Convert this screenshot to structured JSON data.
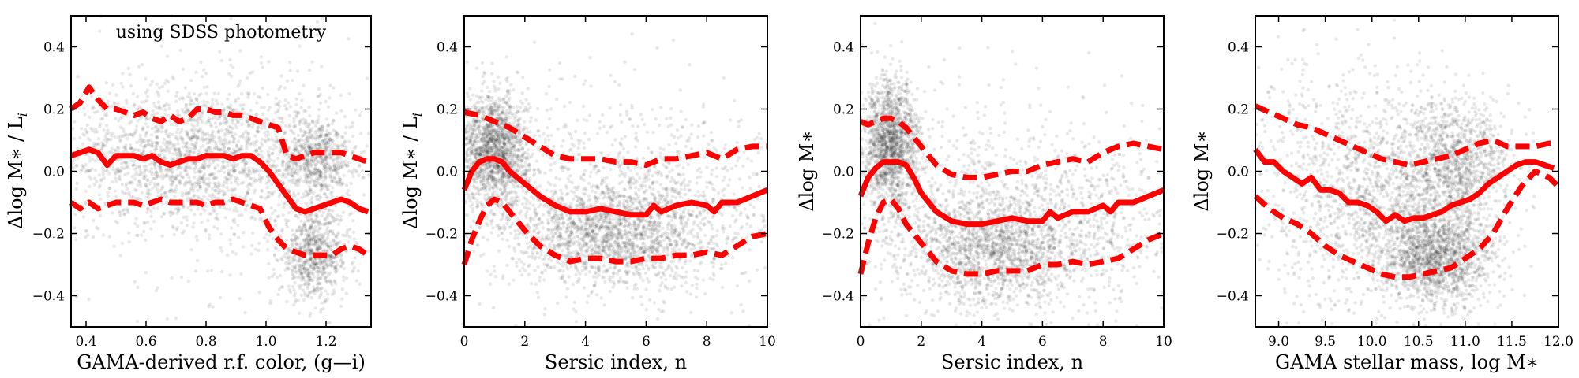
{
  "figure_colors": {
    "scatter": "#000000",
    "median_line": "#ff0000",
    "percentile_line": "#ff0000"
  },
  "chart_data": [
    {
      "type": "scatter",
      "xlabel": "GAMA-derived r.f. color, (g—i)",
      "ylabel": "Δlog M∗ / L",
      "ylabel_subscript": "i",
      "annotation": "using SDSS photometry",
      "xlim": [
        0.35,
        1.35
      ],
      "ylim": [
        -0.5,
        0.5
      ],
      "xticks": [
        0.4,
        0.6,
        0.8,
        1.0,
        1.2
      ],
      "xtick_labels": [
        "0.4",
        "0.6",
        "0.8",
        "1.0",
        "1.2"
      ],
      "yticks": [
        -0.4,
        -0.2,
        0.0,
        0.2,
        0.4
      ],
      "ytick_labels": [
        "−0.4",
        "−0.2",
        "0.0",
        "0.2",
        "0.4"
      ],
      "density_clusters": [
        {
          "x": 0.75,
          "y": 0.05,
          "sx": 0.22,
          "sy": 0.11,
          "n": 1700
        },
        {
          "x": 1.17,
          "y": 0.04,
          "sx": 0.06,
          "sy": 0.07,
          "n": 650
        },
        {
          "x": 1.16,
          "y": -0.27,
          "sx": 0.06,
          "sy": 0.07,
          "n": 750
        },
        {
          "x": 0.85,
          "y": 0.0,
          "sx": 0.3,
          "sy": 0.25,
          "n": 450
        }
      ],
      "series": [
        {
          "name": "median",
          "style": "solid",
          "x": [
            0.35,
            0.38,
            0.41,
            0.44,
            0.47,
            0.5,
            0.53,
            0.56,
            0.59,
            0.62,
            0.65,
            0.68,
            0.71,
            0.74,
            0.77,
            0.8,
            0.83,
            0.86,
            0.89,
            0.92,
            0.95,
            0.98,
            1.01,
            1.04,
            1.07,
            1.1,
            1.13,
            1.16,
            1.19,
            1.22,
            1.25,
            1.28,
            1.31,
            1.34
          ],
          "y": [
            0.05,
            0.06,
            0.07,
            0.06,
            0.02,
            0.05,
            0.05,
            0.05,
            0.04,
            0.05,
            0.03,
            0.02,
            0.03,
            0.04,
            0.04,
            0.05,
            0.05,
            0.05,
            0.04,
            0.05,
            0.05,
            0.03,
            0.0,
            -0.04,
            -0.08,
            -0.12,
            -0.13,
            -0.12,
            -0.11,
            -0.1,
            -0.09,
            -0.1,
            -0.12,
            -0.13
          ]
        },
        {
          "name": "upper percentile",
          "style": "dashed",
          "x": [
            0.35,
            0.38,
            0.41,
            0.44,
            0.47,
            0.5,
            0.53,
            0.56,
            0.59,
            0.62,
            0.65,
            0.68,
            0.71,
            0.74,
            0.77,
            0.8,
            0.83,
            0.86,
            0.89,
            0.92,
            0.95,
            0.98,
            1.01,
            1.04,
            1.07,
            1.1,
            1.13,
            1.16,
            1.19,
            1.22,
            1.25,
            1.28,
            1.31,
            1.34
          ],
          "y": [
            0.2,
            0.22,
            0.27,
            0.23,
            0.2,
            0.2,
            0.19,
            0.18,
            0.19,
            0.17,
            0.16,
            0.18,
            0.16,
            0.17,
            0.2,
            0.2,
            0.19,
            0.19,
            0.18,
            0.18,
            0.17,
            0.16,
            0.15,
            0.14,
            0.05,
            0.04,
            0.05,
            0.06,
            0.06,
            0.06,
            0.06,
            0.05,
            0.04,
            0.03
          ]
        },
        {
          "name": "lower percentile",
          "style": "dashed",
          "x": [
            0.35,
            0.38,
            0.41,
            0.44,
            0.47,
            0.5,
            0.53,
            0.56,
            0.59,
            0.62,
            0.65,
            0.68,
            0.71,
            0.74,
            0.77,
            0.8,
            0.83,
            0.86,
            0.89,
            0.92,
            0.95,
            0.98,
            1.01,
            1.04,
            1.07,
            1.1,
            1.13,
            1.16,
            1.19,
            1.22,
            1.25,
            1.28,
            1.31,
            1.34
          ],
          "y": [
            -0.1,
            -0.12,
            -0.1,
            -0.12,
            -0.11,
            -0.1,
            -0.1,
            -0.1,
            -0.11,
            -0.1,
            -0.09,
            -0.1,
            -0.1,
            -0.1,
            -0.1,
            -0.11,
            -0.1,
            -0.1,
            -0.09,
            -0.1,
            -0.11,
            -0.12,
            -0.18,
            -0.22,
            -0.25,
            -0.26,
            -0.27,
            -0.27,
            -0.27,
            -0.27,
            -0.25,
            -0.24,
            -0.25,
            -0.27
          ]
        }
      ]
    },
    {
      "type": "scatter",
      "xlabel": "Sersic index, n",
      "ylabel": "Δlog M∗ / L",
      "ylabel_subscript": "i",
      "annotation": "",
      "xlim": [
        0,
        10
      ],
      "ylim": [
        -0.5,
        0.5
      ],
      "xticks": [
        0,
        2,
        4,
        6,
        8,
        10
      ],
      "xtick_labels": [
        "0",
        "2",
        "4",
        "6",
        "8",
        "10"
      ],
      "yticks": [
        -0.4,
        -0.2,
        0.0,
        0.2,
        0.4
      ],
      "ytick_labels": [
        "−0.4",
        "−0.2",
        "0.0",
        "0.2",
        "0.4"
      ],
      "density_clusters": [
        {
          "x": 1.0,
          "y": 0.07,
          "sx": 0.55,
          "sy": 0.09,
          "n": 1500
        },
        {
          "x": 4.8,
          "y": -0.2,
          "sx": 1.6,
          "sy": 0.08,
          "n": 1600
        },
        {
          "x": 3.5,
          "y": -0.05,
          "sx": 2.5,
          "sy": 0.18,
          "n": 700
        },
        {
          "x": 7.5,
          "y": -0.1,
          "sx": 1.6,
          "sy": 0.14,
          "n": 450
        }
      ],
      "series": [
        {
          "name": "median",
          "style": "solid",
          "x": [
            0,
            0.25,
            0.5,
            0.75,
            1.0,
            1.25,
            1.5,
            2.0,
            2.5,
            3.0,
            3.5,
            4.0,
            4.5,
            5.0,
            5.5,
            6.0,
            6.25,
            6.5,
            7.0,
            7.5,
            8.0,
            8.25,
            8.5,
            9.0,
            9.5,
            10.0
          ],
          "y": [
            -0.06,
            0.0,
            0.03,
            0.04,
            0.04,
            0.03,
            0.0,
            -0.04,
            -0.08,
            -0.11,
            -0.13,
            -0.13,
            -0.12,
            -0.13,
            -0.14,
            -0.14,
            -0.11,
            -0.13,
            -0.11,
            -0.1,
            -0.11,
            -0.13,
            -0.1,
            -0.1,
            -0.08,
            -0.06
          ]
        },
        {
          "name": "upper percentile",
          "style": "dashed",
          "x": [
            0,
            0.5,
            1.0,
            1.5,
            2.0,
            2.5,
            3.0,
            3.5,
            4.0,
            4.5,
            5.0,
            5.5,
            6.0,
            6.5,
            7.0,
            7.5,
            8.0,
            8.5,
            9.0,
            9.5,
            10.0
          ],
          "y": [
            0.19,
            0.18,
            0.16,
            0.14,
            0.11,
            0.08,
            0.05,
            0.04,
            0.04,
            0.04,
            0.03,
            0.03,
            0.02,
            0.04,
            0.04,
            0.05,
            0.06,
            0.04,
            0.07,
            0.08,
            0.08
          ]
        },
        {
          "name": "lower percentile",
          "style": "dashed",
          "x": [
            0,
            0.25,
            0.5,
            0.75,
            1.0,
            1.25,
            1.5,
            2.0,
            2.5,
            3.0,
            3.5,
            4.0,
            4.5,
            5.0,
            5.5,
            6.0,
            6.5,
            7.0,
            7.5,
            8.0,
            8.5,
            9.0,
            9.5,
            10.0
          ],
          "y": [
            -0.3,
            -0.22,
            -0.16,
            -0.11,
            -0.09,
            -0.1,
            -0.13,
            -0.19,
            -0.24,
            -0.27,
            -0.29,
            -0.28,
            -0.28,
            -0.29,
            -0.29,
            -0.28,
            -0.28,
            -0.27,
            -0.27,
            -0.26,
            -0.27,
            -0.24,
            -0.21,
            -0.2
          ]
        }
      ]
    },
    {
      "type": "scatter",
      "xlabel": "Sersic index, n",
      "ylabel": "Δlog M∗",
      "ylabel_subscript": "",
      "annotation": "",
      "xlim": [
        0,
        10
      ],
      "ylim": [
        -0.5,
        0.5
      ],
      "xticks": [
        0,
        2,
        4,
        6,
        8,
        10
      ],
      "xtick_labels": [
        "0",
        "2",
        "4",
        "6",
        "8",
        "10"
      ],
      "yticks": [
        -0.4,
        -0.2,
        0.0,
        0.2,
        0.4
      ],
      "ytick_labels": [
        "−0.4",
        "−0.2",
        "0.0",
        "0.2",
        "0.4"
      ],
      "density_clusters": [
        {
          "x": 1.0,
          "y": 0.09,
          "sx": 0.45,
          "sy": 0.1,
          "n": 1500
        },
        {
          "x": 4.5,
          "y": -0.25,
          "sx": 1.5,
          "sy": 0.09,
          "n": 1600
        },
        {
          "x": 3.5,
          "y": -0.1,
          "sx": 2.5,
          "sy": 0.18,
          "n": 700
        },
        {
          "x": 7.5,
          "y": -0.15,
          "sx": 1.6,
          "sy": 0.14,
          "n": 450
        }
      ],
      "series": [
        {
          "name": "median",
          "style": "solid",
          "x": [
            0,
            0.25,
            0.5,
            0.75,
            1.0,
            1.25,
            1.5,
            1.75,
            2.0,
            2.5,
            3.0,
            3.5,
            4.0,
            4.5,
            5.0,
            5.5,
            6.0,
            6.25,
            6.5,
            7.0,
            7.5,
            8.0,
            8.25,
            8.5,
            9.0,
            9.5,
            10.0
          ],
          "y": [
            -0.08,
            -0.02,
            0.01,
            0.03,
            0.03,
            0.03,
            0.02,
            -0.02,
            -0.07,
            -0.13,
            -0.16,
            -0.17,
            -0.17,
            -0.16,
            -0.15,
            -0.16,
            -0.16,
            -0.13,
            -0.15,
            -0.13,
            -0.13,
            -0.11,
            -0.13,
            -0.1,
            -0.1,
            -0.08,
            -0.06
          ]
        },
        {
          "name": "upper percentile",
          "style": "dashed",
          "x": [
            0,
            0.25,
            0.5,
            0.75,
            1.0,
            1.25,
            1.5,
            2.0,
            2.5,
            3.0,
            3.5,
            4.0,
            4.5,
            5.0,
            5.5,
            6.0,
            6.5,
            7.0,
            7.5,
            8.0,
            8.5,
            9.0,
            9.5,
            10.0
          ],
          "y": [
            0.16,
            0.15,
            0.16,
            0.17,
            0.17,
            0.16,
            0.14,
            0.08,
            0.02,
            -0.01,
            -0.02,
            -0.02,
            -0.01,
            0.0,
            0.0,
            0.02,
            0.03,
            0.04,
            0.03,
            0.06,
            0.08,
            0.09,
            0.08,
            0.07
          ]
        },
        {
          "name": "lower percentile",
          "style": "dashed",
          "x": [
            0,
            0.25,
            0.5,
            0.75,
            1.0,
            1.25,
            1.5,
            2.0,
            2.5,
            3.0,
            3.5,
            4.0,
            4.5,
            5.0,
            5.5,
            6.0,
            6.5,
            7.0,
            7.5,
            8.0,
            8.5,
            9.0,
            9.5,
            10.0
          ],
          "y": [
            -0.33,
            -0.23,
            -0.15,
            -0.1,
            -0.09,
            -0.12,
            -0.17,
            -0.23,
            -0.29,
            -0.32,
            -0.33,
            -0.33,
            -0.32,
            -0.32,
            -0.32,
            -0.3,
            -0.3,
            -0.29,
            -0.3,
            -0.29,
            -0.28,
            -0.25,
            -0.22,
            -0.2
          ]
        }
      ]
    },
    {
      "type": "scatter",
      "xlabel": "GAMA stellar mass, log M∗",
      "ylabel": "Δlog M∗",
      "ylabel_subscript": "",
      "annotation": "",
      "xlim": [
        8.75,
        12.0
      ],
      "ylim": [
        -0.5,
        0.5
      ],
      "xticks": [
        9.0,
        9.5,
        10.0,
        10.5,
        11.0,
        11.5,
        12.0
      ],
      "xtick_labels": [
        "9.0",
        "9.5",
        "10.0",
        "10.5",
        "11.0",
        "11.5",
        "12.0"
      ],
      "yticks": [
        -0.4,
        -0.2,
        0.0,
        0.2,
        0.4
      ],
      "ytick_labels": [
        "−0.4",
        "−0.2",
        "0.0",
        "0.2",
        "0.4"
      ],
      "density_clusters": [
        {
          "x": 10.7,
          "y": -0.28,
          "sx": 0.3,
          "sy": 0.08,
          "n": 1500
        },
        {
          "x": 10.9,
          "y": 0.03,
          "sx": 0.3,
          "sy": 0.1,
          "n": 1100
        },
        {
          "x": 10.2,
          "y": -0.1,
          "sx": 0.55,
          "sy": 0.16,
          "n": 1200
        },
        {
          "x": 9.5,
          "y": 0.0,
          "sx": 0.6,
          "sy": 0.22,
          "n": 500
        }
      ],
      "series": [
        {
          "name": "median",
          "style": "solid",
          "x": [
            8.75,
            8.85,
            8.95,
            9.05,
            9.15,
            9.25,
            9.35,
            9.45,
            9.55,
            9.65,
            9.75,
            9.85,
            9.95,
            10.05,
            10.15,
            10.25,
            10.35,
            10.45,
            10.55,
            10.65,
            10.75,
            10.85,
            10.95,
            11.05,
            11.15,
            11.25,
            11.35,
            11.45,
            11.55,
            11.65,
            11.75,
            11.85,
            11.95
          ],
          "y": [
            0.07,
            0.03,
            0.03,
            0.0,
            -0.02,
            -0.04,
            -0.02,
            -0.06,
            -0.06,
            -0.07,
            -0.1,
            -0.1,
            -0.11,
            -0.13,
            -0.16,
            -0.14,
            -0.16,
            -0.15,
            -0.15,
            -0.14,
            -0.13,
            -0.11,
            -0.1,
            -0.09,
            -0.07,
            -0.04,
            -0.02,
            0.0,
            0.02,
            0.03,
            0.03,
            0.02,
            0.01
          ]
        },
        {
          "name": "upper percentile",
          "style": "dashed",
          "x": [
            8.75,
            8.9,
            9.05,
            9.2,
            9.35,
            9.5,
            9.65,
            9.8,
            9.95,
            10.1,
            10.25,
            10.4,
            10.55,
            10.7,
            10.85,
            11.0,
            11.15,
            11.3,
            11.45,
            11.6,
            11.75,
            11.9,
            12.0
          ],
          "y": [
            0.21,
            0.19,
            0.17,
            0.15,
            0.14,
            0.12,
            0.1,
            0.08,
            0.06,
            0.04,
            0.03,
            0.02,
            0.03,
            0.04,
            0.05,
            0.07,
            0.09,
            0.1,
            0.08,
            0.08,
            0.08,
            0.09,
            0.09
          ]
        },
        {
          "name": "lower percentile",
          "style": "dashed",
          "x": [
            8.75,
            8.9,
            9.05,
            9.2,
            9.35,
            9.5,
            9.65,
            9.8,
            9.95,
            10.1,
            10.25,
            10.4,
            10.55,
            10.7,
            10.85,
            11.0,
            11.15,
            11.3,
            11.45,
            11.6,
            11.75,
            11.9,
            12.0
          ],
          "y": [
            -0.08,
            -0.12,
            -0.15,
            -0.17,
            -0.2,
            -0.24,
            -0.27,
            -0.29,
            -0.31,
            -0.33,
            -0.34,
            -0.34,
            -0.33,
            -0.32,
            -0.31,
            -0.28,
            -0.25,
            -0.2,
            -0.12,
            -0.05,
            0.0,
            -0.02,
            -0.05
          ]
        }
      ]
    }
  ]
}
